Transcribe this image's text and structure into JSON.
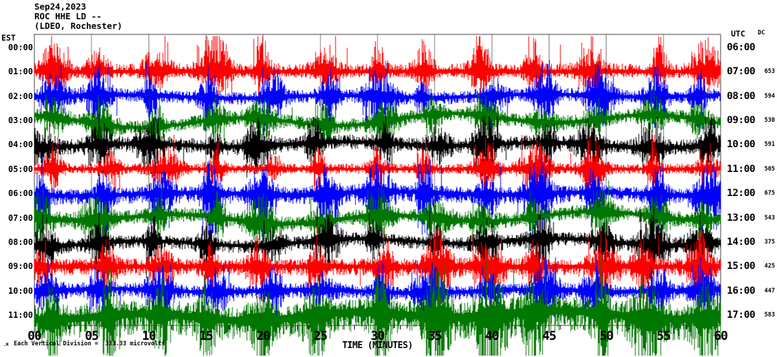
{
  "header": {
    "date": "Sep24,2023",
    "station_line": "ROC HHE LD --",
    "location_line": "(LDEO, Rochester)"
  },
  "left_axis": {
    "label": "EST",
    "hours": [
      "00:00",
      "01:00",
      "02:00",
      "03:00",
      "04:00",
      "05:00",
      "06:00",
      "07:00",
      "08:00",
      "09:00",
      "10:00",
      "11:00"
    ]
  },
  "right_axis": {
    "label": "UTC",
    "hours": [
      "06:00",
      "07:00",
      "08:00",
      "09:00",
      "10:00",
      "11:00",
      "12:00",
      "13:00",
      "14:00",
      "15:00",
      "16:00",
      "17:00"
    ]
  },
  "dc_column": {
    "label": "DC",
    "values": [
      "653",
      "594",
      "530",
      "591",
      "505",
      "675",
      "543",
      "375",
      "425",
      "447",
      "583"
    ]
  },
  "x_axis": {
    "title": "TIME (MINUTES)",
    "tick_labels": [
      "00",
      "05",
      "10",
      "15",
      "20",
      "25",
      "30",
      "35",
      "40",
      "45",
      "50",
      "55",
      "60"
    ],
    "minutes_min": 0,
    "minutes_max": 60,
    "minor_tick_every_minutes": 1,
    "major_tick_every_minutes": 5
  },
  "footer": {
    "scale_note": "Each Vertical Division =  333.33 microvolts",
    "watermark": ".M"
  },
  "chart_data": {
    "type": "line",
    "title": "ROC HHE LD -- (LDEO, Rochester) helicorder, Sep24,2023",
    "xlabel": "TIME (MINUTES)",
    "x_range_minutes": [
      0,
      60
    ],
    "grid": "vertical lines every 5 minutes",
    "legend_position": "none",
    "colors": {
      "red": "#ff0000",
      "blue": "#0000ff",
      "green": "#007700",
      "black": "#000000",
      "grid": "#7f7f7f",
      "frame": "#404040"
    },
    "color_cycle": [
      "#ff0000",
      "#0000ff",
      "#007700",
      "#000000"
    ],
    "event_burst_minutes": [
      1.1,
      5.9,
      10.7,
      15.5,
      20.3,
      25.1,
      29.9,
      34.7,
      39.5,
      44.3,
      49.1,
      53.9,
      58.7
    ],
    "traces": [
      {
        "est_start": "01:00",
        "utc_start": "07:00",
        "dc": 653,
        "color": "#ff0000",
        "seed": 11,
        "amp": 5.5,
        "burst": 3.6,
        "spike": 40,
        "bias": -0.45,
        "wobble": 0
      },
      {
        "est_start": "02:00",
        "utc_start": "08:00",
        "dc": 594,
        "color": "#0000ff",
        "seed": 22,
        "amp": 6.0,
        "burst": 3.2,
        "spike": 36,
        "bias": 0.1,
        "wobble": 2
      },
      {
        "est_start": "03:00",
        "utc_start": "09:00",
        "dc": 530,
        "color": "#007700",
        "seed": 33,
        "amp": 6.5,
        "burst": 2.6,
        "spike": 28,
        "bias": 0.0,
        "wobble": 7
      },
      {
        "est_start": "04:00",
        "utc_start": "10:00",
        "dc": 591,
        "color": "#000000",
        "seed": 44,
        "amp": 7.0,
        "burst": 2.8,
        "spike": 30,
        "bias": 0.05,
        "wobble": 3
      },
      {
        "est_start": "05:00",
        "utc_start": "11:00",
        "dc": 505,
        "color": "#ff0000",
        "seed": 55,
        "amp": 4.5,
        "burst": 3.8,
        "spike": 40,
        "bias": -0.2,
        "wobble": 0
      },
      {
        "est_start": "06:00",
        "utc_start": "12:00",
        "dc": 675,
        "color": "#0000ff",
        "seed": 66,
        "amp": 6.5,
        "burst": 3.4,
        "spike": 48,
        "bias": 0.45,
        "wobble": 2
      },
      {
        "est_start": "07:00",
        "utc_start": "13:00",
        "dc": 543,
        "color": "#007700",
        "seed": 77,
        "amp": 7.0,
        "burst": 2.6,
        "spike": 30,
        "bias": 0.0,
        "wobble": 6
      },
      {
        "est_start": "08:00",
        "utc_start": "14:00",
        "dc": 375,
        "color": "#000000",
        "seed": 88,
        "amp": 6.0,
        "burst": 3.0,
        "spike": 42,
        "bias": 0.2,
        "wobble": 4
      },
      {
        "est_start": "09:00",
        "utc_start": "15:00",
        "dc": 425,
        "color": "#ff0000",
        "seed": 99,
        "amp": 7.5,
        "burst": 3.2,
        "spike": 42,
        "bias": 0.2,
        "wobble": 0
      },
      {
        "est_start": "10:00",
        "utc_start": "16:00",
        "dc": 447,
        "color": "#0000ff",
        "seed": 111,
        "amp": 6.0,
        "burst": 3.0,
        "spike": 34,
        "bias": 0.2,
        "wobble": 2
      },
      {
        "est_start": "11:00",
        "utc_start": "17:00",
        "dc": 583,
        "color": "#007700",
        "seed": 122,
        "amp": 13.0,
        "burst": 2.4,
        "spike": 60,
        "bias": 0.55,
        "wobble": 5
      }
    ]
  }
}
